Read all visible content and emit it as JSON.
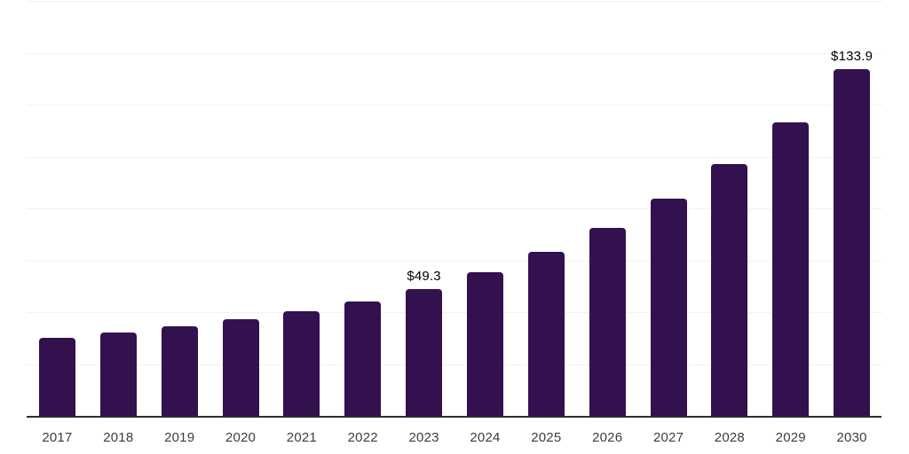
{
  "chart_data": {
    "type": "bar",
    "title": "",
    "xlabel": "",
    "ylabel": "",
    "categories": [
      "2017",
      "2018",
      "2019",
      "2020",
      "2021",
      "2022",
      "2023",
      "2024",
      "2025",
      "2026",
      "2027",
      "2028",
      "2029",
      "2030"
    ],
    "values": [
      30.3,
      32.4,
      34.8,
      37.5,
      40.6,
      44.3,
      49.3,
      55.6,
      63.6,
      72.9,
      84.2,
      97.4,
      113.6,
      133.9
    ],
    "data_labels": {
      "2023": "$49.3",
      "2030": "$133.9"
    },
    "ylim": [
      0,
      160
    ],
    "gridline_step": 20,
    "grid": true,
    "legend_position": "none",
    "bar_color": "#33114f",
    "gridline_color": "#f1f1f1",
    "axis_line_color": "#2e2e2e",
    "tick_label_color": "#3d3d3d",
    "value_label_color": "#000000",
    "background_color": "#ffffff"
  }
}
